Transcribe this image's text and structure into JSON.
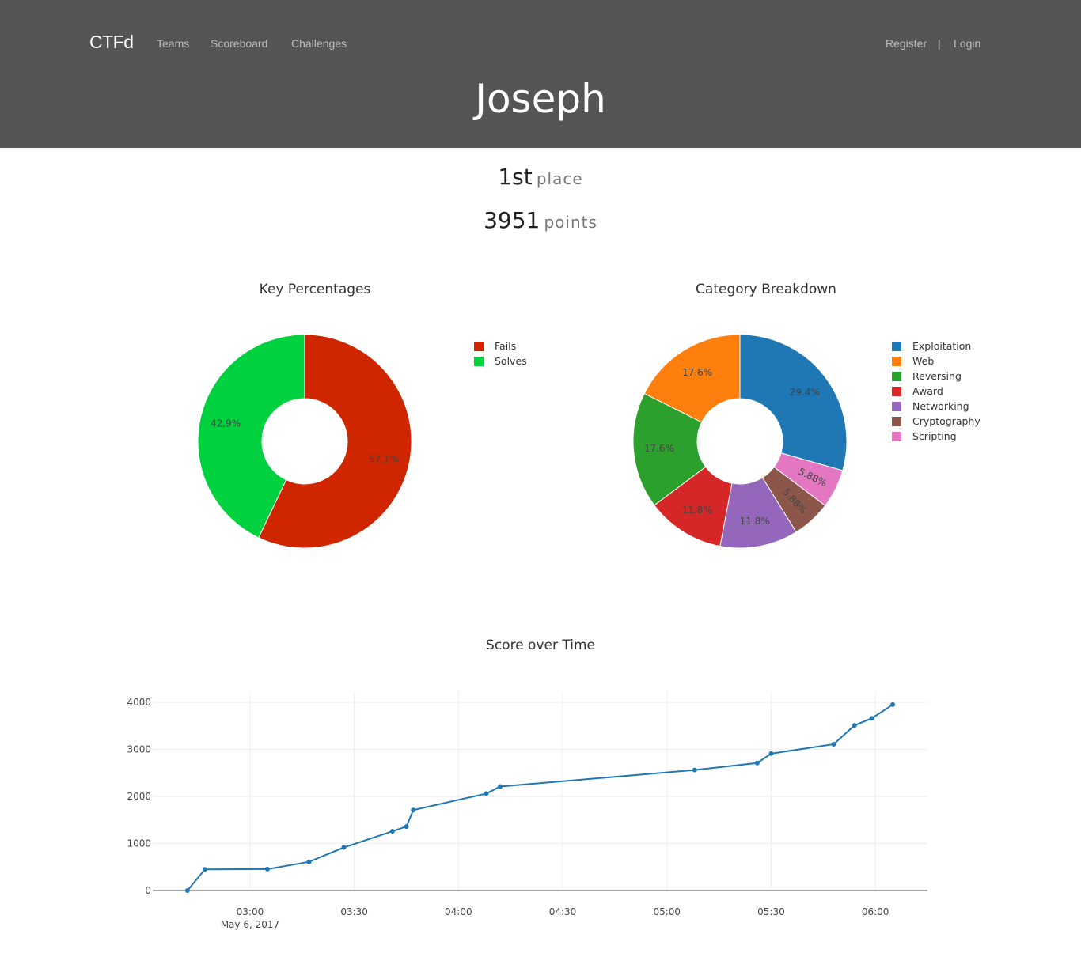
{
  "nav": {
    "brand": "CTFd",
    "links": [
      "Teams",
      "Scoreboard",
      "Challenges"
    ],
    "register": "Register",
    "separator": "|",
    "login": "Login"
  },
  "profile": {
    "name": "Joseph",
    "place_value": "1st",
    "place_label": "place",
    "points_value": "3951",
    "points_label": "points"
  },
  "chart_data": [
    {
      "type": "pie",
      "title": "Key Percentages",
      "labels": [
        "Fails",
        "Solves"
      ],
      "values": [
        57.1,
        42.9
      ],
      "display_labels": [
        "57.1%",
        "42.9%"
      ],
      "colors": [
        "#cf2600",
        "#00d13f"
      ],
      "hole": true,
      "legend": "right"
    },
    {
      "type": "pie",
      "title": "Category Breakdown",
      "labels": [
        "Exploitation",
        "Scripting",
        "Cryptography",
        "Networking",
        "Award",
        "Reversing",
        "Web"
      ],
      "values": [
        29.4,
        5.88,
        5.88,
        11.8,
        11.8,
        17.6,
        17.6
      ],
      "display_labels": [
        "29.4%",
        "5.88%",
        "5.88%",
        "11.8%",
        "11.8%",
        "17.6%",
        "17.6%"
      ],
      "colors": [
        "#1f77b4",
        "#e377c2",
        "#8c564b",
        "#9467bd",
        "#d62728",
        "#2ca02c",
        "#ff7f0e"
      ],
      "legend_order": [
        "Exploitation",
        "Web",
        "Reversing",
        "Award",
        "Networking",
        "Cryptography",
        "Scripting"
      ],
      "legend_colors": [
        "#1f77b4",
        "#ff7f0e",
        "#2ca02c",
        "#d62728",
        "#9467bd",
        "#8c564b",
        "#e377c2"
      ],
      "hole": true,
      "legend": "right"
    },
    {
      "type": "line",
      "title": "Score over Time",
      "x": [
        "02:42",
        "02:47",
        "03:05",
        "03:17",
        "03:27",
        "03:41",
        "03:45",
        "03:47",
        "04:08",
        "04:12",
        "05:08",
        "05:26",
        "05:30",
        "05:48",
        "05:54",
        "05:59",
        "06:05"
      ],
      "y": [
        0,
        450,
        455,
        610,
        915,
        1260,
        1360,
        1710,
        2060,
        2210,
        2560,
        2710,
        2910,
        3110,
        3510,
        3660,
        3951
      ],
      "x_ticks": [
        "03:00",
        "03:30",
        "04:00",
        "04:30",
        "05:00",
        "05:30",
        "06:00"
      ],
      "x_sublabel": "May 6, 2017",
      "y_ticks": [
        0,
        1000,
        2000,
        3000,
        4000
      ],
      "ylim": [
        0,
        4000
      ],
      "color": "#1f77b4",
      "grid": true
    }
  ]
}
